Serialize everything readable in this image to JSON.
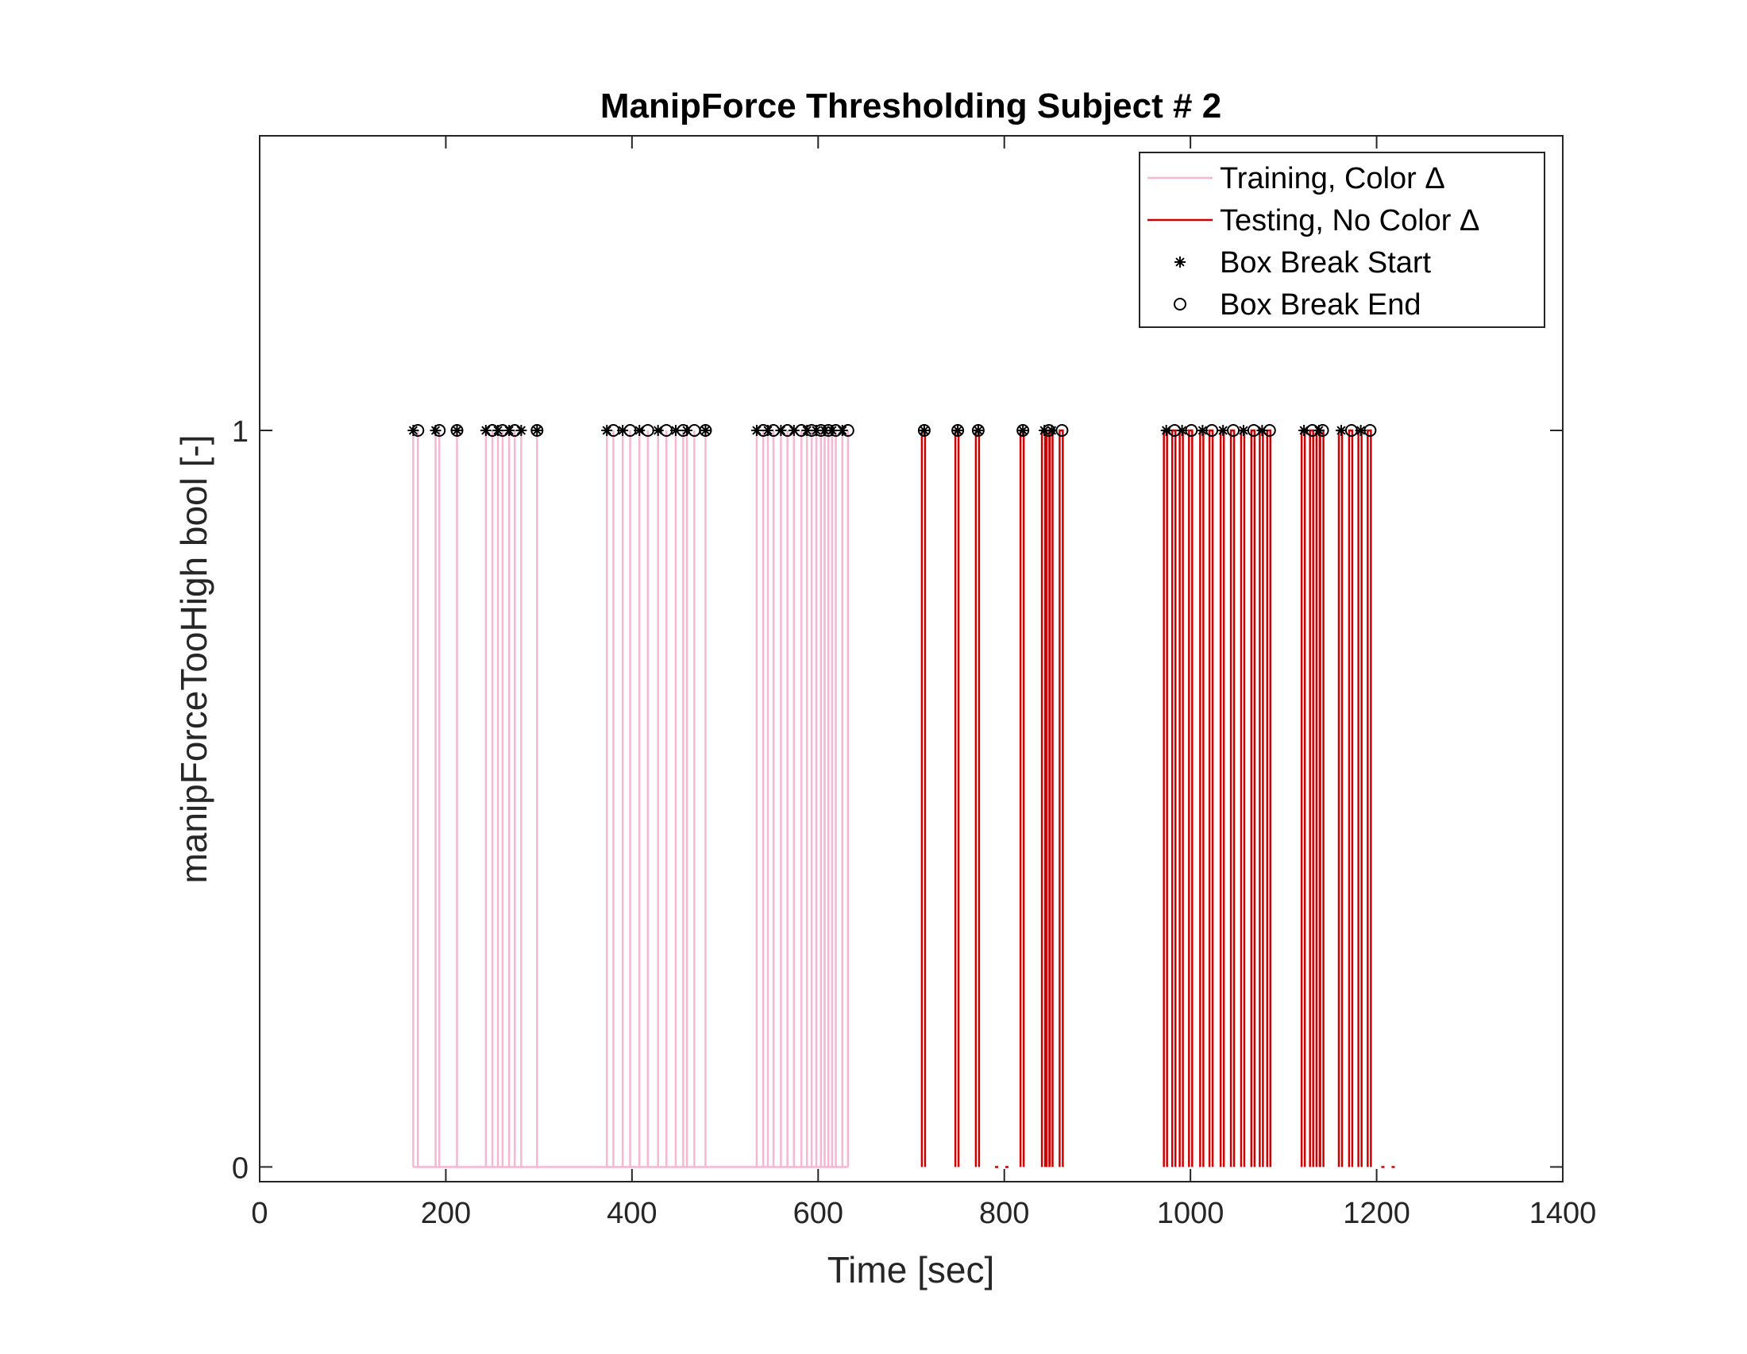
{
  "chart_data": {
    "type": "line",
    "title": "ManipForce Thresholding Subject # 2",
    "xlabel": "Time [sec]",
    "ylabel": "manipForceTooHigh bool [-]",
    "xlim": [
      0,
      1400
    ],
    "ylim": [
      -0.02,
      1.4
    ],
    "xticks": [
      0,
      200,
      400,
      600,
      800,
      1000,
      1200,
      1400
    ],
    "xtick_labels": [
      "0",
      "200",
      "400",
      "600",
      "800",
      "1000",
      "1200",
      "1400"
    ],
    "yticks": [
      0,
      1
    ],
    "ytick_labels": [
      "0",
      "1"
    ],
    "grid": false,
    "legend_position": "top-right",
    "series": [
      {
        "name": "Training, Color Δ",
        "kind": "line",
        "color": "#f7b6d2",
        "baseline_range": [
          165,
          632
        ],
        "spikes_x": [
          165,
          170,
          189,
          193,
          212,
          243,
          250,
          256,
          261,
          268,
          274,
          281,
          298,
          373,
          380,
          390,
          398,
          408,
          417,
          428,
          437,
          447,
          455,
          459,
          467,
          479,
          534,
          541,
          546,
          552,
          560,
          567,
          574,
          582,
          588,
          593,
          598,
          603,
          607,
          611,
          615,
          619,
          626,
          632
        ]
      },
      {
        "name": "Testing, No Color Δ",
        "kind": "line",
        "color": "#cc0000",
        "spikes_x": [
          714,
          750,
          772,
          820,
          843,
          848,
          851,
          862,
          974,
          983,
          991,
          1001,
          1013,
          1023,
          1035,
          1046,
          1057,
          1068,
          1077,
          1085,
          1122,
          1131,
          1138,
          1142,
          1162,
          1173,
          1183,
          1193
        ],
        "dash_segments": [
          [
            790,
            810
          ],
          [
            1205,
            1227
          ]
        ]
      },
      {
        "name": "Box Break Start",
        "kind": "marker",
        "marker": "asterisk",
        "color": "#000000",
        "y": 1,
        "x": [
          165,
          189,
          212,
          243,
          256,
          268,
          281,
          298,
          373,
          390,
          408,
          428,
          447,
          459,
          479,
          534,
          546,
          560,
          574,
          588,
          598,
          607,
          615,
          626,
          714,
          750,
          772,
          820,
          843,
          851,
          974,
          991,
          1013,
          1035,
          1057,
          1077,
          1122,
          1138,
          1162,
          1183
        ]
      },
      {
        "name": "Box Break End",
        "kind": "marker",
        "marker": "circle",
        "color": "#000000",
        "y": 1,
        "x": [
          170,
          193,
          212,
          250,
          261,
          274,
          298,
          380,
          398,
          417,
          437,
          455,
          467,
          479,
          541,
          552,
          567,
          582,
          593,
          603,
          611,
          619,
          632,
          714,
          750,
          772,
          820,
          848,
          862,
          983,
          1001,
          1023,
          1046,
          1068,
          1085,
          1131,
          1142,
          1173,
          1193
        ]
      }
    ]
  }
}
